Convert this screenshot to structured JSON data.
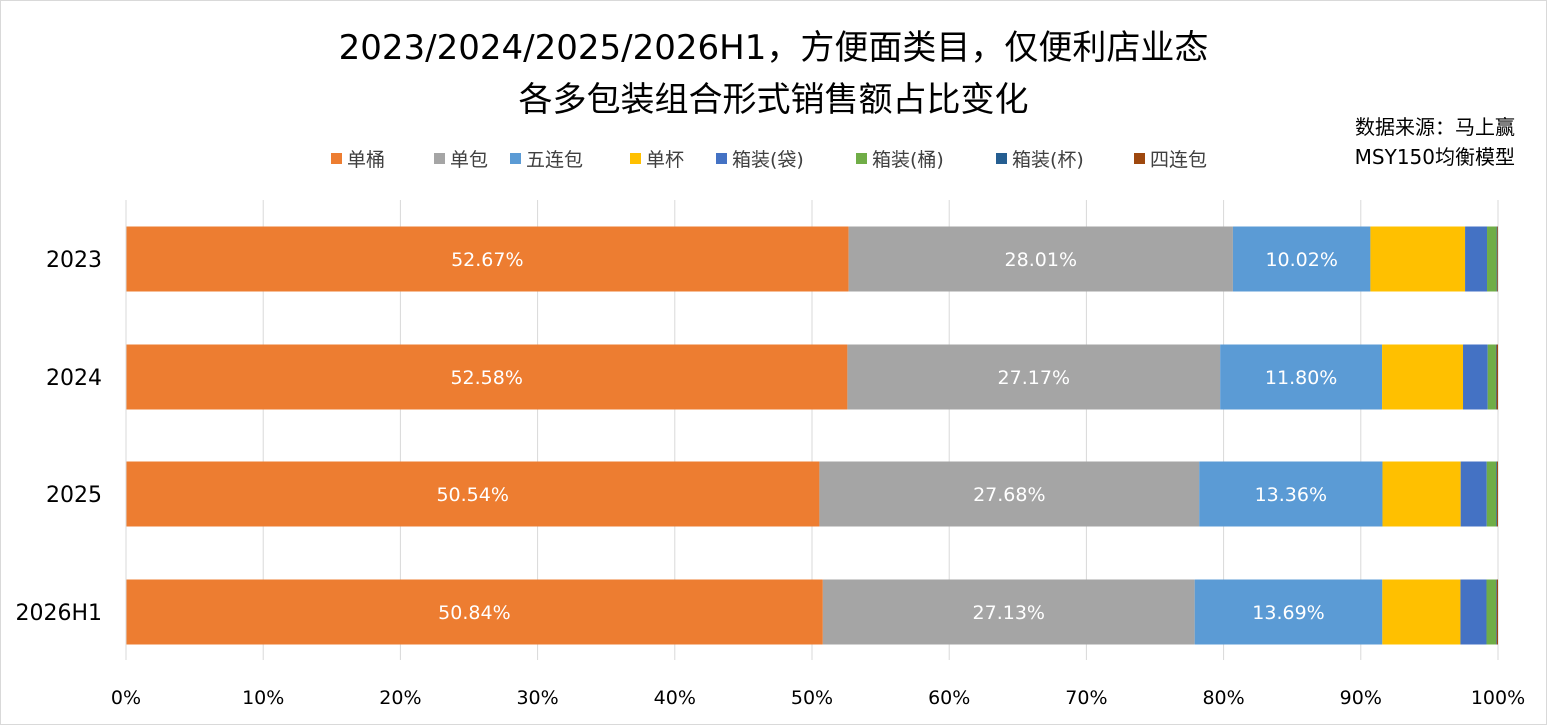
{
  "chart_data": {
    "type": "bar",
    "orientation": "horizontal",
    "stacked": "percent",
    "title_lines": [
      "2023/2024/2025/2026H1，方便面类目，仅便利店业态",
      "各多包装组合形式销售额占比变化"
    ],
    "source_lines": [
      "数据来源：马上赢",
      "MSY150均衡模型"
    ],
    "categories": [
      "2023",
      "2024",
      "2025",
      "2026H1"
    ],
    "series": [
      {
        "name": "单桶",
        "color": "#ED7D31",
        "values": [
          52.67,
          52.58,
          50.54,
          50.84
        ],
        "labels": [
          "52.67%",
          "52.58%",
          "50.54%",
          "50.84%"
        ]
      },
      {
        "name": "单包",
        "color": "#A5A5A5",
        "values": [
          28.01,
          27.17,
          27.68,
          27.13
        ],
        "labels": [
          "28.01%",
          "27.17%",
          "27.68%",
          "27.13%"
        ]
      },
      {
        "name": "五连包",
        "color": "#5B9BD5",
        "values": [
          10.02,
          11.8,
          13.36,
          13.69
        ],
        "labels": [
          "10.02%",
          "11.80%",
          "13.36%",
          "13.69%"
        ]
      },
      {
        "name": "单杯",
        "color": "#FFC000",
        "values": [
          6.9,
          5.9,
          5.7,
          5.7
        ],
        "labels": [
          "",
          "",
          "",
          ""
        ]
      },
      {
        "name": "箱装(袋)",
        "color": "#4472C4",
        "values": [
          1.6,
          1.8,
          1.9,
          1.9
        ],
        "labels": [
          "",
          "",
          "",
          ""
        ]
      },
      {
        "name": "箱装(桶)",
        "color": "#70AD47",
        "values": [
          0.7,
          0.6,
          0.7,
          0.7
        ],
        "labels": [
          "",
          "",
          "",
          ""
        ]
      },
      {
        "name": "箱装(杯)",
        "color": "#255E91",
        "values": [
          0.05,
          0.05,
          0.05,
          0.05
        ],
        "labels": [
          "",
          "",
          "",
          ""
        ]
      },
      {
        "name": "四连包",
        "color": "#9E480E",
        "values": [
          0.05,
          0.1,
          0.07,
          0.09
        ],
        "labels": [
          "",
          "",
          "",
          ""
        ]
      }
    ],
    "xlim": [
      0,
      100
    ],
    "x_ticks": [
      "0%",
      "10%",
      "20%",
      "30%",
      "40%",
      "50%",
      "60%",
      "70%",
      "80%",
      "90%",
      "100%"
    ],
    "grid": true,
    "legend_position": "top"
  }
}
